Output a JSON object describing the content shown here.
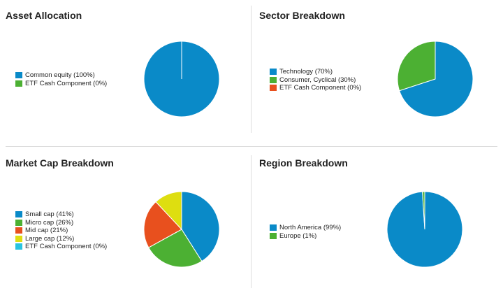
{
  "chart_data": [
    {
      "type": "pie",
      "title": "Asset Allocation",
      "legend_position": "left",
      "slices": [
        {
          "label": "Common equity (100%)",
          "value": 100,
          "color": "#0a8ac8"
        },
        {
          "label": "ETF Cash Component (0%)",
          "value": 0,
          "color": "#4cb033"
        }
      ]
    },
    {
      "type": "pie",
      "title": "Sector Breakdown",
      "legend_position": "left",
      "slices": [
        {
          "label": "Technology (70%)",
          "value": 70,
          "color": "#0a8ac8"
        },
        {
          "label": "Consumer, Cyclical (30%)",
          "value": 30,
          "color": "#4cb033"
        },
        {
          "label": "ETF Cash Component (0%)",
          "value": 0,
          "color": "#e8501e"
        }
      ]
    },
    {
      "type": "pie",
      "title": "Market Cap Breakdown",
      "legend_position": "left",
      "slices": [
        {
          "label": "Small cap (41%)",
          "value": 41,
          "color": "#0a8ac8"
        },
        {
          "label": "Micro cap (26%)",
          "value": 26,
          "color": "#4cb033"
        },
        {
          "label": "Mid cap (21%)",
          "value": 21,
          "color": "#e8501e"
        },
        {
          "label": "Large cap (12%)",
          "value": 12,
          "color": "#dede10"
        },
        {
          "label": "ETF Cash Component (0%)",
          "value": 0,
          "color": "#29c4e0"
        }
      ]
    },
    {
      "type": "pie",
      "title": "Region Breakdown",
      "legend_position": "left",
      "slices": [
        {
          "label": "North America (99%)",
          "value": 99,
          "color": "#0a8ac8"
        },
        {
          "label": "Europe (1%)",
          "value": 1,
          "color": "#4cb033"
        }
      ]
    }
  ]
}
